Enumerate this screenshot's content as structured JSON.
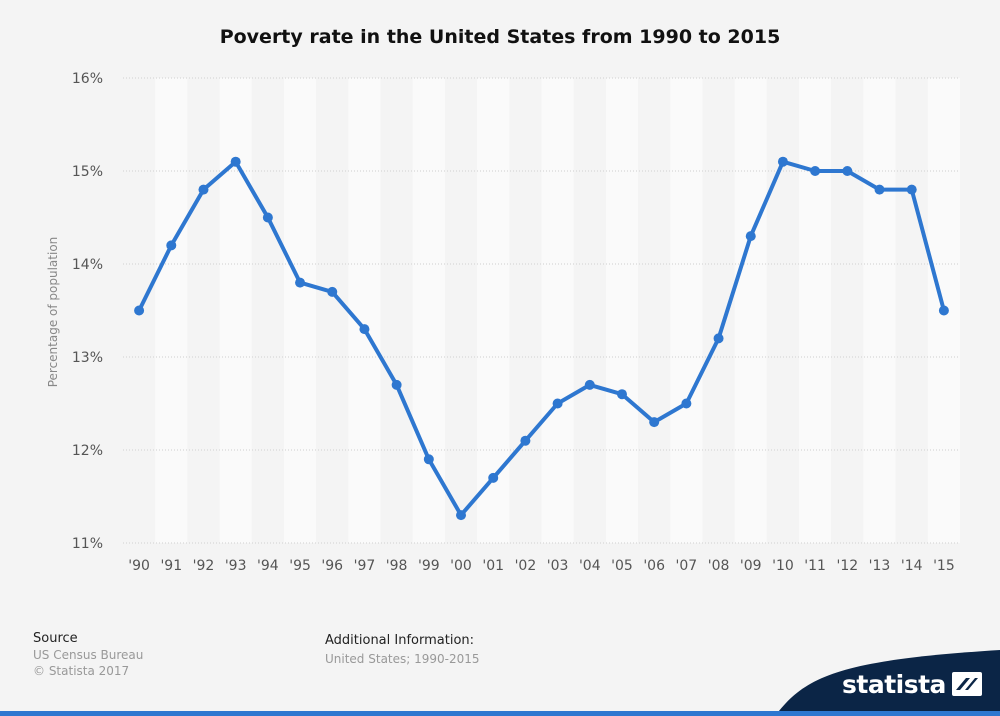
{
  "chart_data": {
    "type": "line",
    "title": "Poverty rate in the United States from 1990 to 2015",
    "xlabel": "",
    "ylabel": "Percentage of population",
    "categories": [
      "'90",
      "'91",
      "'92",
      "'93",
      "'94",
      "'95",
      "'96",
      "'97",
      "'98",
      "'99",
      "'00",
      "'01",
      "'02",
      "'03",
      "'04",
      "'05",
      "'06",
      "'07",
      "'08",
      "'09",
      "'10",
      "'11",
      "'12",
      "'13",
      "'14",
      "'15"
    ],
    "series": [
      {
        "values": [
          13.5,
          14.2,
          14.8,
          15.1,
          14.5,
          13.8,
          13.7,
          13.3,
          12.7,
          11.9,
          11.3,
          11.7,
          12.1,
          12.5,
          12.7,
          12.6,
          12.3,
          12.5,
          13.2,
          14.3,
          15.1,
          15.0,
          15.0,
          14.8,
          14.8,
          13.5
        ]
      }
    ],
    "ylim": [
      11,
      16
    ],
    "yticks": [
      "11%",
      "12%",
      "13%",
      "14%",
      "15%",
      "16%"
    ],
    "ytick_values": [
      11,
      12,
      13,
      14,
      15,
      16
    ],
    "grid": true,
    "legend": "none",
    "line_color": "#2e77d0"
  },
  "footer": {
    "source_heading": "Source",
    "source_text": "US Census Bureau",
    "copyright": "© Statista 2017",
    "additional_heading": "Additional Information:",
    "additional_text": "United States; 1990-2015"
  },
  "brand": {
    "name": "statista",
    "color": "#0b2546"
  }
}
